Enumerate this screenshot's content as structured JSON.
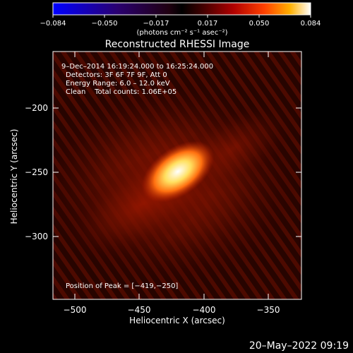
{
  "colorbar": {
    "ticks": [
      "−0.084",
      "−0.050",
      "−0.017",
      "0.017",
      "0.050",
      "0.084"
    ],
    "units": "(photons cm⁻² s⁻¹ asec⁻²)"
  },
  "title": "Reconstructed RHESSI Image",
  "info": {
    "time_range": "9–Dec–2014 16:19:24.000 to 16:25:24.000",
    "detectors": "Detectors: 3F 6F 7F 9F, Att 0",
    "energy": "Energy Range: 6.0 – 12.0 keV",
    "clean": "Clean    Total counts: 1.06E+05",
    "peak": "Position of Peak = [−419,−250]"
  },
  "axes": {
    "xlabel": "Heliocentric X (arcsec)",
    "ylabel": "Heliocentric Y (arcsec)",
    "xticks": [
      "−500",
      "−450",
      "−400",
      "−350"
    ],
    "yticks": [
      "−200",
      "−250",
      "−300"
    ]
  },
  "footer": {
    "date": "20–May–2022 09:19"
  }
}
